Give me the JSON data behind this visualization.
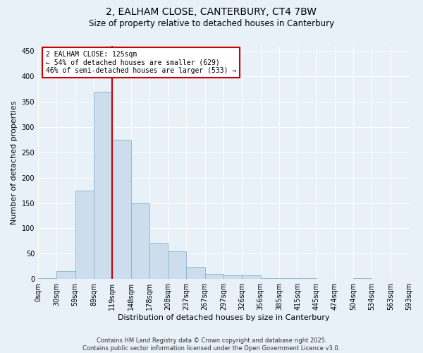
{
  "title_line1": "2, EALHAM CLOSE, CANTERBURY, CT4 7BW",
  "title_line2": "Size of property relative to detached houses in Canterbury",
  "xlabel": "Distribution of detached houses by size in Canterbury",
  "ylabel": "Number of detached properties",
  "heights": [
    2,
    15,
    175,
    370,
    275,
    150,
    72,
    54,
    24,
    10,
    7,
    7,
    2,
    2,
    2,
    0,
    0,
    2,
    0,
    0
  ],
  "x_tick_labels": [
    "0sqm",
    "30sqm",
    "59sqm",
    "89sqm",
    "119sqm",
    "148sqm",
    "178sqm",
    "208sqm",
    "237sqm",
    "267sqm",
    "297sqm",
    "326sqm",
    "356sqm",
    "385sqm",
    "415sqm",
    "445sqm",
    "474sqm",
    "504sqm",
    "534sqm",
    "563sqm",
    "593sqm"
  ],
  "bar_color": "#ccdded",
  "bar_edge_color": "#8ab4cc",
  "vline_color": "#cc0000",
  "vline_x": 4.0,
  "annotation_text": "2 EALHAM CLOSE: 125sqm\n← 54% of detached houses are smaller (629)\n46% of semi-detached houses are larger (533) →",
  "annotation_box_color": "#cc0000",
  "ylim_max": 460,
  "yticks": [
    0,
    50,
    100,
    150,
    200,
    250,
    300,
    350,
    400,
    450
  ],
  "footer_line1": "Contains HM Land Registry data © Crown copyright and database right 2025.",
  "footer_line2": "Contains public sector information licensed under the Open Government Licence v3.0.",
  "bg_color": "#e8f0f8",
  "grid_color": "#ffffff",
  "title_fontsize": 10,
  "subtitle_fontsize": 8.5,
  "ylabel_fontsize": 8,
  "xlabel_fontsize": 8,
  "tick_fontsize": 7,
  "annotation_fontsize": 7,
  "footer_fontsize": 6
}
